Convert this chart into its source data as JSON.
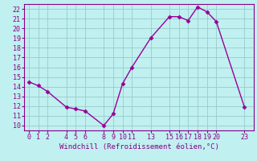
{
  "x": [
    0,
    1,
    2,
    4,
    5,
    6,
    8,
    9,
    10,
    11,
    13,
    15,
    16,
    17,
    18,
    19,
    20,
    23
  ],
  "y": [
    14.5,
    14.1,
    13.5,
    11.9,
    11.7,
    11.5,
    10.0,
    11.2,
    14.3,
    16.0,
    19.0,
    21.2,
    21.2,
    20.8,
    22.2,
    21.7,
    20.7,
    11.9
  ],
  "line_color": "#990099",
  "marker": "D",
  "markersize": 2.5,
  "bg_color": "#c0f0f0",
  "grid_color": "#99cccc",
  "xlabel": "Windchill (Refroidissement éolien,°C)",
  "xlim": [
    -0.5,
    24.0
  ],
  "ylim": [
    9.5,
    22.5
  ],
  "xticks": [
    0,
    1,
    2,
    4,
    5,
    6,
    8,
    9,
    10,
    11,
    13,
    15,
    16,
    17,
    18,
    19,
    20,
    23
  ],
  "yticks": [
    10,
    11,
    12,
    13,
    14,
    15,
    16,
    17,
    18,
    19,
    20,
    21,
    22
  ],
  "tick_color": "#880088",
  "label_color": "#880088",
  "spine_color": "#880088",
  "axis_bg": "#c0f0f0",
  "linewidth": 1.0,
  "tick_fontsize": 6.0,
  "xlabel_fontsize": 6.5
}
